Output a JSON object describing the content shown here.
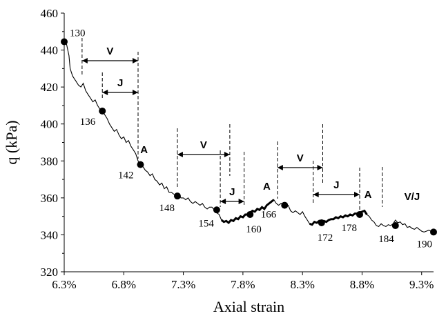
{
  "chart_data": {
    "type": "line",
    "title": "",
    "xlabel": "Axial strain",
    "ylabel": "q (kPa)",
    "xlim": [
      6.3,
      9.4
    ],
    "ylim": [
      320,
      460
    ],
    "x_ticks": [
      {
        "value": 6.3,
        "label": "6.3%"
      },
      {
        "value": 6.8,
        "label": "6.8%"
      },
      {
        "value": 7.3,
        "label": "7.3%"
      },
      {
        "value": 7.8,
        "label": "7.8%"
      },
      {
        "value": 8.3,
        "label": "8.3%"
      },
      {
        "value": 8.8,
        "label": "8.8%"
      },
      {
        "value": 9.3,
        "label": "9.3%"
      }
    ],
    "y_ticks": [
      {
        "value": 320,
        "label": "320"
      },
      {
        "value": 340,
        "label": "340"
      },
      {
        "value": 360,
        "label": "360"
      },
      {
        "value": 380,
        "label": "380"
      },
      {
        "value": 400,
        "label": "400"
      },
      {
        "value": 420,
        "label": "420"
      },
      {
        "value": 440,
        "label": "440"
      },
      {
        "value": 460,
        "label": "460"
      }
    ],
    "grid": false,
    "series": [
      {
        "points": [
          [
            6.3,
            444.5
          ],
          [
            6.32,
            443
          ],
          [
            6.34,
            437
          ],
          [
            6.35,
            430
          ],
          [
            6.37,
            426
          ],
          [
            6.39,
            424
          ],
          [
            6.4,
            423
          ],
          [
            6.42,
            421
          ],
          [
            6.44,
            420
          ],
          [
            6.46,
            422
          ],
          [
            6.48,
            418
          ],
          [
            6.5,
            416
          ],
          [
            6.52,
            414
          ],
          [
            6.54,
            412
          ],
          [
            6.56,
            413
          ],
          [
            6.58,
            410
          ],
          [
            6.6,
            408
          ],
          [
            6.62,
            407
          ],
          [
            6.64,
            405
          ],
          [
            6.66,
            403
          ],
          [
            6.68,
            400
          ],
          [
            6.7,
            398
          ],
          [
            6.72,
            396
          ],
          [
            6.74,
            397
          ],
          [
            6.76,
            394
          ],
          [
            6.78,
            392
          ],
          [
            6.8,
            393
          ],
          [
            6.82,
            390
          ],
          [
            6.84,
            391
          ],
          [
            6.86,
            388
          ],
          [
            6.88,
            386
          ],
          [
            6.9,
            384
          ],
          [
            6.92,
            380
          ],
          [
            6.94,
            378
          ],
          [
            6.96,
            377
          ],
          [
            6.98,
            375
          ],
          [
            7.0,
            374
          ],
          [
            7.02,
            372
          ],
          [
            7.04,
            373
          ],
          [
            7.06,
            370
          ],
          [
            7.08,
            369
          ],
          [
            7.1,
            367
          ],
          [
            7.12,
            368
          ],
          [
            7.14,
            365
          ],
          [
            7.16,
            366
          ],
          [
            7.18,
            363
          ],
          [
            7.2,
            363
          ],
          [
            7.22,
            362
          ],
          [
            7.24,
            361
          ],
          [
            7.26,
            362
          ],
          [
            7.28,
            360
          ],
          [
            7.3,
            360
          ],
          [
            7.32,
            359
          ],
          [
            7.34,
            360
          ],
          [
            7.36,
            358
          ],
          [
            7.38,
            357
          ],
          [
            7.4,
            358
          ],
          [
            7.42,
            357
          ],
          [
            7.44,
            356
          ],
          [
            7.46,
            357
          ],
          [
            7.48,
            355
          ],
          [
            7.5,
            354
          ],
          [
            7.52,
            355
          ],
          [
            7.54,
            355
          ],
          [
            7.56,
            353.5
          ],
          [
            7.58,
            352
          ],
          [
            7.6,
            351
          ],
          [
            7.62,
            348
          ],
          [
            7.64,
            347
          ],
          [
            7.66,
            347.5
          ],
          [
            7.68,
            346.5
          ],
          [
            7.7,
            348
          ],
          [
            7.72,
            347.5
          ],
          [
            7.74,
            349
          ],
          [
            7.76,
            348.5
          ],
          [
            7.78,
            350
          ],
          [
            7.8,
            349.5
          ],
          [
            7.82,
            351
          ],
          [
            7.84,
            351
          ],
          [
            7.86,
            352
          ],
          [
            7.88,
            353
          ],
          [
            7.9,
            352.5
          ],
          [
            7.92,
            354
          ],
          [
            7.94,
            353.5
          ],
          [
            7.96,
            355
          ],
          [
            7.98,
            354
          ],
          [
            8.0,
            356
          ],
          [
            8.02,
            357
          ],
          [
            8.04,
            358
          ],
          [
            8.06,
            359
          ],
          [
            8.08,
            357
          ],
          [
            8.1,
            356
          ],
          [
            8.12,
            357
          ],
          [
            8.14,
            356
          ],
          [
            8.16,
            355
          ],
          [
            8.18,
            356
          ],
          [
            8.2,
            353
          ],
          [
            8.22,
            352
          ],
          [
            8.24,
            353
          ],
          [
            8.26,
            352
          ],
          [
            8.28,
            351
          ],
          [
            8.3,
            352.5
          ],
          [
            8.32,
            350
          ],
          [
            8.34,
            348
          ],
          [
            8.36,
            346
          ],
          [
            8.38,
            345.5
          ],
          [
            8.4,
            347
          ],
          [
            8.42,
            346.5
          ],
          [
            8.44,
            347.5
          ],
          [
            8.46,
            346.5
          ],
          [
            8.48,
            347.5
          ],
          [
            8.5,
            347
          ],
          [
            8.52,
            348
          ],
          [
            8.54,
            348.5
          ],
          [
            8.56,
            348.5
          ],
          [
            8.58,
            349.5
          ],
          [
            8.6,
            349
          ],
          [
            8.62,
            350
          ],
          [
            8.64,
            349.5
          ],
          [
            8.66,
            350.5
          ],
          [
            8.68,
            350
          ],
          [
            8.7,
            351
          ],
          [
            8.72,
            350.5
          ],
          [
            8.74,
            351.5
          ],
          [
            8.76,
            351.5
          ],
          [
            8.78,
            352
          ],
          [
            8.8,
            352.5
          ],
          [
            8.82,
            353
          ],
          [
            8.84,
            351
          ],
          [
            8.86,
            350
          ],
          [
            8.88,
            348
          ],
          [
            8.9,
            347
          ],
          [
            8.92,
            345
          ],
          [
            8.94,
            344.5
          ],
          [
            8.96,
            346
          ],
          [
            8.98,
            345
          ],
          [
            9.0,
            344.5
          ],
          [
            9.02,
            345.5
          ],
          [
            9.04,
            345
          ],
          [
            9.06,
            346
          ],
          [
            9.08,
            348
          ],
          [
            9.1,
            346.5
          ],
          [
            9.12,
            347
          ],
          [
            9.14,
            345.5
          ],
          [
            9.16,
            346
          ],
          [
            9.18,
            344
          ],
          [
            9.2,
            344.5
          ],
          [
            9.22,
            343.5
          ],
          [
            9.24,
            343
          ],
          [
            9.26,
            344
          ],
          [
            9.28,
            343
          ],
          [
            9.3,
            342
          ],
          [
            9.32,
            341.5
          ],
          [
            9.34,
            342
          ],
          [
            9.36,
            342.5
          ],
          [
            9.38,
            342
          ],
          [
            9.4,
            341.5
          ]
        ]
      }
    ],
    "markers": [
      {
        "x": 6.3,
        "y": 444.5,
        "label": "130"
      },
      {
        "x": 6.62,
        "y": 407,
        "label": "136"
      },
      {
        "x": 6.94,
        "y": 378,
        "label": "142"
      },
      {
        "x": 7.25,
        "y": 361,
        "label": "148"
      },
      {
        "x": 7.58,
        "y": 353.5,
        "label": "154"
      },
      {
        "x": 7.86,
        "y": 351,
        "label": "160"
      },
      {
        "x": 8.15,
        "y": 356,
        "label": "166"
      },
      {
        "x": 8.46,
        "y": 346.5,
        "label": "172"
      },
      {
        "x": 8.78,
        "y": 351,
        "label": "178"
      },
      {
        "x": 9.08,
        "y": 345,
        "label": "184"
      },
      {
        "x": 9.4,
        "y": 341.5,
        "label": "190"
      }
    ],
    "dashed_lines": [
      6.45,
      6.62,
      6.92,
      7.25,
      7.61,
      7.69,
      7.81,
      8.09,
      8.39,
      8.47,
      8.78,
      8.97
    ],
    "zones": [
      {
        "label": "V",
        "from": 6.45,
        "to": 6.92
      },
      {
        "label": "J",
        "from": 6.62,
        "to": 6.92
      },
      {
        "label": "V",
        "from": 7.25,
        "to": 7.69
      },
      {
        "label": "J",
        "from": 7.61,
        "to": 7.81
      },
      {
        "label": "V",
        "from": 8.09,
        "to": 8.47
      },
      {
        "label": "J",
        "from": 8.39,
        "to": 8.78
      }
    ],
    "zone_labels": [
      "A",
      "A",
      "A",
      "V/J"
    ]
  }
}
